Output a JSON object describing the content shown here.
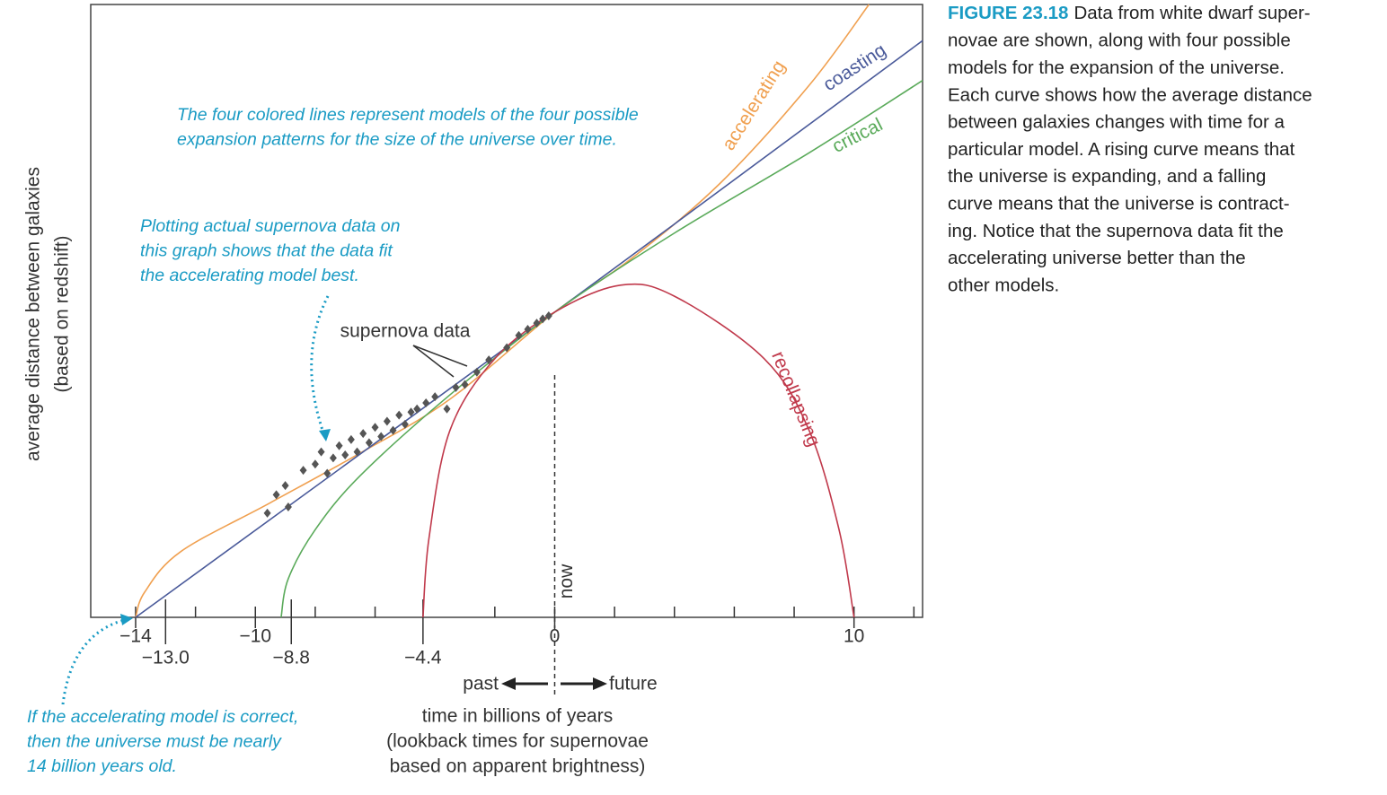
{
  "chart_data": {
    "type": "line",
    "xlabel": [
      "time in billions of years",
      "(lookback times for supernovae",
      "based on apparent brightness)"
    ],
    "ylabel": [
      "average distance between galaxies",
      "(based on redshift)"
    ],
    "xlim": [
      -15.5,
      12.29
    ],
    "ylim": [
      0,
      100
    ],
    "xticks": [
      {
        "value": -14,
        "label": "−14"
      },
      {
        "value": -13,
        "label": "−13.0"
      },
      {
        "value": -10,
        "label": "−10"
      },
      {
        "value": -8.8,
        "label": "−8.8"
      },
      {
        "value": -4.4,
        "label": "−4.4"
      },
      0,
      10
    ],
    "minor_xticks": [
      -12,
      -8,
      -6,
      -2,
      2,
      4,
      6,
      8,
      12
    ],
    "now_label": "now",
    "past_label": "past",
    "future_label": "future",
    "series": [
      {
        "name": "accelerating",
        "color": "#f0a050",
        "x": [
          -14,
          -13.7,
          -12.5,
          -9.5,
          -6.5,
          -3.5,
          0,
          2.5,
          5.5,
          8.5,
          10.5
        ],
        "values": [
          0,
          4.1,
          10.7,
          18.7,
          26.8,
          35.6,
          49.8,
          58.3,
          70.7,
          86.8,
          100
        ]
      },
      {
        "name": "coasting",
        "color": "#4a5a9a",
        "x": [
          -14,
          0,
          12.29
        ],
        "values": [
          0,
          49.8,
          94.1
        ]
      },
      {
        "name": "critical",
        "color": "#5aaa5a",
        "x": [
          -9.14,
          -8.9,
          -8.0,
          -6.5,
          -3.5,
          0,
          4,
          8.5,
          12.29
        ],
        "values": [
          0,
          6.3,
          14.3,
          23.1,
          36.3,
          49.8,
          62.7,
          75.8,
          87.6
        ]
      },
      {
        "name": "recollapsing",
        "color": "#c0394b",
        "x": [
          -4.4,
          -4.2,
          -3.5,
          -2,
          0,
          2.2,
          4,
          7,
          8.5,
          9.5,
          10
        ],
        "values": [
          0,
          12.9,
          30.5,
          42.2,
          49.8,
          54.2,
          52.4,
          42.2,
          30.5,
          14.3,
          0
        ]
      },
      {
        "name": "supernova data",
        "type": "scatter",
        "color": "#555555",
        "x": [
          -9.6,
          -9.3,
          -9.0,
          -8.9,
          -8.4,
          -8.0,
          -7.8,
          -7.6,
          -7.4,
          -7.2,
          -7.0,
          -6.8,
          -6.6,
          -6.4,
          -6.2,
          -6.0,
          -5.8,
          -5.6,
          -5.4,
          -5.2,
          -5.0,
          -4.8,
          -4.6,
          -4.3,
          -4.0,
          -3.6,
          -3.3,
          -3.0,
          -2.6,
          -2.2,
          -1.6,
          -1.2,
          -0.9,
          -0.6,
          -0.4,
          -0.2
        ],
        "values": [
          17,
          20,
          21.5,
          18,
          24,
          25,
          27,
          23.5,
          26,
          28,
          26.5,
          29,
          27,
          30,
          28.5,
          31,
          29.5,
          32,
          30.5,
          33,
          31.5,
          33.5,
          34,
          35,
          36,
          34,
          37.5,
          38,
          40,
          42,
          44,
          46,
          47,
          48,
          48.7,
          49.2
        ]
      }
    ],
    "annotations": [
      [
        "The four colored lines represent models of the four possible",
        "expansion patterns for the size of the universe over time."
      ],
      [
        "Plotting actual supernova data on",
        "this graph shows that the data fit",
        "the accelerating model best."
      ],
      [
        "If the accelerating model is correct,",
        "then the universe must be nearly",
        "14 billion years old."
      ]
    ]
  },
  "caption": {
    "label": "FIGURE 23.18",
    "lines": [
      "Data from white dwarf super-",
      "novae are shown, along with four possible",
      "models for the expansion of the universe.",
      "Each curve shows how the average distance",
      "between galaxies changes with time for a",
      "particular model. A rising curve means that",
      "the universe is expanding, and a falling",
      "curve means that the universe is contract-",
      "ing. Notice that the supernova data fit the",
      "accelerating universe better than the",
      "other models."
    ]
  }
}
